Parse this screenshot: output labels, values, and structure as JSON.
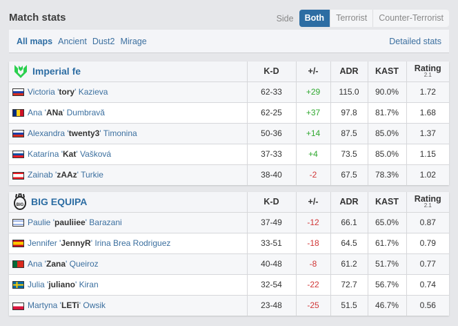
{
  "title": "Match stats",
  "side": {
    "label": "Side",
    "options": [
      "Both",
      "Terrorist",
      "Counter-Terrorist"
    ],
    "selected": "Both"
  },
  "maps": {
    "items": [
      "All maps",
      "Ancient",
      "Dust2",
      "Mirage"
    ],
    "selected": "All maps",
    "detailed": "Detailed stats"
  },
  "columns": {
    "kd": "K-D",
    "pm": "+/-",
    "adr": "ADR",
    "kast": "KAST",
    "rating": "Rating",
    "rating_ver": "2.1"
  },
  "teams": [
    {
      "name": "Imperial fe",
      "logo_color": "#2bd04f",
      "players": [
        {
          "flag": "ru",
          "first": "Victoria '",
          "nick": "tory",
          "last": "' Kazieva",
          "kd": "62-33",
          "pm": "+29",
          "adr": "115.0",
          "kast": "90.0%",
          "rating": "1.72"
        },
        {
          "flag": "ro",
          "first": "Ana '",
          "nick": "ANa",
          "last": "' Dumbravă",
          "kd": "62-25",
          "pm": "+37",
          "adr": "97.8",
          "kast": "81.7%",
          "rating": "1.68"
        },
        {
          "flag": "ru",
          "first": "Alexandra '",
          "nick": "twenty3",
          "last": "' Timonina",
          "kd": "50-36",
          "pm": "+14",
          "adr": "87.5",
          "kast": "85.0%",
          "rating": "1.37"
        },
        {
          "flag": "sk",
          "first": "Katarína '",
          "nick": "Kat",
          "last": "' Vašková",
          "kd": "37-33",
          "pm": "+4",
          "adr": "73.5",
          "kast": "85.0%",
          "rating": "1.15"
        },
        {
          "flag": "lb",
          "first": "Zainab '",
          "nick": "zAAz",
          "last": "' Turkie",
          "kd": "38-40",
          "pm": "-2",
          "adr": "67.5",
          "kast": "78.3%",
          "rating": "1.02"
        }
      ]
    },
    {
      "name": "BIG EQUIPA",
      "logo_color": "#222222",
      "players": [
        {
          "flag": "il",
          "first": "Paulie '",
          "nick": "pauliiee",
          "last": "' Barazani",
          "kd": "37-49",
          "pm": "-12",
          "adr": "66.1",
          "kast": "65.0%",
          "rating": "0.87"
        },
        {
          "flag": "es",
          "first": "Jennifer '",
          "nick": "JennyR",
          "last": "' Irina Brea Rodriguez",
          "kd": "33-51",
          "pm": "-18",
          "adr": "64.5",
          "kast": "61.7%",
          "rating": "0.79"
        },
        {
          "flag": "pt",
          "first": "Ana '",
          "nick": "Zana",
          "last": "' Queiroz",
          "kd": "40-48",
          "pm": "-8",
          "adr": "61.2",
          "kast": "51.7%",
          "rating": "0.77"
        },
        {
          "flag": "se",
          "first": "Julia '",
          "nick": "juliano",
          "last": "' Kiran",
          "kd": "32-54",
          "pm": "-22",
          "adr": "72.7",
          "kast": "56.7%",
          "rating": "0.74"
        },
        {
          "flag": "pl",
          "first": "Martyna '",
          "nick": "LETi",
          "last": "' Owsik",
          "kd": "23-48",
          "pm": "-25",
          "adr": "51.5",
          "kast": "46.7%",
          "rating": "0.56"
        }
      ]
    }
  ]
}
